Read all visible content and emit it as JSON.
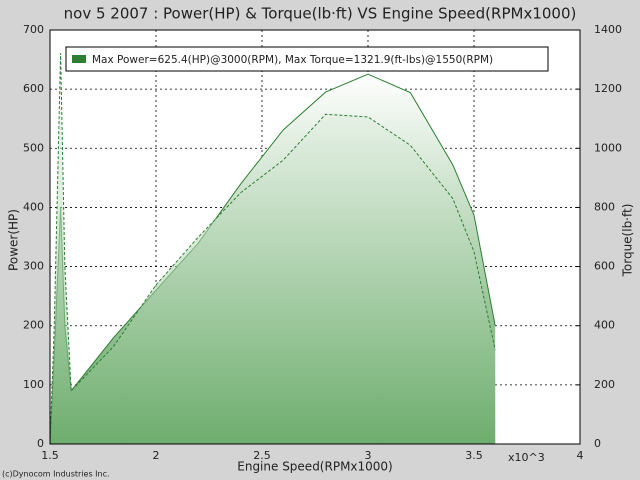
{
  "chart_data": {
    "type": "area",
    "title": "nov 5 2007 : Power(HP) & Torque(lb·ft) VS Engine Speed(RPMx1000)",
    "x_label": "Engine Speed(RPMx1000)",
    "y_label": "Power(HP)",
    "y2_label": "Torque(lb·ft)",
    "x_multiplier": "x10^3",
    "credit": "(c)Dynocom Industries Inc.",
    "legend": "Max Power=625.4(HP)@3000(RPM), Max Torque=1321.9(ft-lbs)@1550(RPM)",
    "x": [
      1.5,
      1.52,
      1.55,
      1.57,
      1.6,
      1.8,
      2.0,
      2.2,
      2.4,
      2.6,
      2.8,
      3.0,
      3.2,
      3.4,
      3.5,
      3.6
    ],
    "series": [
      {
        "color": "#2e7d32",
        "values": [
          0,
          150,
          400,
          200,
          90,
          180,
          260,
          340,
          440,
          531,
          595,
          625.4,
          594,
          472,
          387,
          200
        ]
      },
      {
        "color": "#2e7d32",
        "axis": "y2",
        "dashed": true,
        "values": [
          0,
          400,
          1321.9,
          600,
          180,
          330,
          538,
          700,
          850,
          960,
          1115,
          1106,
          1010,
          830,
          650,
          318
        ]
      }
    ],
    "xlim": [
      1.5,
      4
    ],
    "xticks": [
      1.5,
      2,
      2.5,
      3,
      3.5,
      4
    ],
    "ylim": [
      0,
      700
    ],
    "yticks": [
      0,
      100,
      200,
      300,
      400,
      500,
      600,
      700
    ],
    "y2lim": [
      0,
      1400
    ],
    "y2ticks": [
      0,
      200,
      400,
      600,
      800,
      1000,
      1200,
      1400
    ],
    "grid": true
  }
}
